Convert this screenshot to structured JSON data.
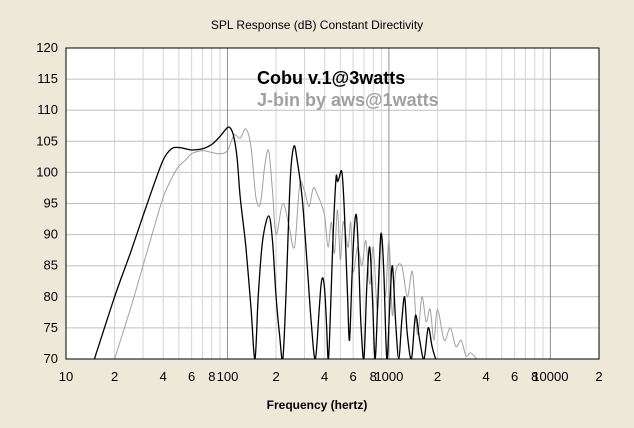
{
  "chart_data": {
    "type": "line",
    "title": "SPL Response (dB)   Constant Directivity",
    "xlabel": "Frequency (hertz)",
    "ylabel": "",
    "x_scale": "log",
    "xlim": [
      10,
      20000
    ],
    "ylim": [
      70,
      120
    ],
    "y_ticks": [
      70,
      75,
      80,
      85,
      90,
      95,
      100,
      105,
      110,
      115,
      120
    ],
    "x_ticks": [
      {
        "value": 10,
        "label": "10"
      },
      {
        "value": 20,
        "label": "2"
      },
      {
        "value": 40,
        "label": "4"
      },
      {
        "value": 60,
        "label": "6"
      },
      {
        "value": 80,
        "label": "8"
      },
      {
        "value": 100,
        "label": "100"
      },
      {
        "value": 200,
        "label": "2"
      },
      {
        "value": 400,
        "label": "4"
      },
      {
        "value": 600,
        "label": "6"
      },
      {
        "value": 800,
        "label": "8"
      },
      {
        "value": 1000,
        "label": "1000"
      },
      {
        "value": 2000,
        "label": "2"
      },
      {
        "value": 4000,
        "label": "4"
      },
      {
        "value": 6000,
        "label": "6"
      },
      {
        "value": 8000,
        "label": "8"
      },
      {
        "value": 10000,
        "label": "10000"
      },
      {
        "value": 20000,
        "label": "2"
      }
    ],
    "grid": true,
    "legend_position": "top-center",
    "colors": {
      "plot_bg": "#ffffff",
      "grid": "#c0c0c0",
      "series1": "#000000",
      "series2": "#a0a0a0"
    },
    "series": [
      {
        "name": "Cobu v.1@3watts",
        "color": "#000000",
        "x": [
          15,
          20,
          25,
          30,
          35,
          40,
          45,
          50,
          55,
          60,
          70,
          80,
          90,
          100,
          105,
          110,
          115,
          120,
          130,
          140,
          148,
          155,
          165,
          180,
          190,
          200,
          210,
          220,
          230,
          245,
          258,
          270,
          290,
          310,
          330,
          350,
          370,
          380,
          390,
          400,
          410,
          420,
          430,
          450,
          470,
          480,
          490,
          510,
          525,
          540,
          555,
          570,
          590,
          610,
          630,
          650,
          670,
          700,
          730,
          760,
          790,
          820,
          850,
          880,
          900,
          930,
          970,
          1010,
          1050,
          1100,
          1150,
          1200,
          1250,
          1300,
          1380,
          1460,
          1550,
          1650,
          1750,
          1850,
          1950,
          2000
        ],
        "y": [
          70,
          80,
          87,
          93,
          98,
          102,
          103.8,
          104,
          103.8,
          103.6,
          103.8,
          104.5,
          105.8,
          107.2,
          107,
          105.5,
          102,
          96,
          88,
          78,
          70,
          80,
          89,
          93,
          89,
          80,
          74,
          70,
          80,
          99,
          104.2,
          102,
          96,
          86,
          76,
          70,
          78,
          82,
          83,
          81,
          76,
          70,
          74,
          89,
          99,
          98.5,
          99,
          100.2,
          96,
          88,
          80,
          73,
          83,
          91,
          93,
          86,
          76,
          70,
          82,
          88,
          80,
          70,
          78,
          88,
          90,
          84,
          70,
          78,
          85,
          76,
          70,
          76,
          80,
          74,
          70,
          77,
          73,
          70,
          75,
          72,
          70,
          70
        ]
      },
      {
        "name": "J-bin by aws@1watts",
        "color": "#a0a0a0",
        "x": [
          20,
          25,
          30,
          35,
          40,
          45,
          50,
          55,
          60,
          70,
          80,
          90,
          100,
          110,
          120,
          130,
          140,
          150,
          160,
          170,
          180,
          190,
          200,
          220,
          240,
          260,
          280,
          300,
          320,
          340,
          360,
          380,
          400,
          420,
          440,
          460,
          480,
          500,
          520,
          540,
          560,
          580,
          600,
          640,
          680,
          720,
          760,
          800,
          850,
          900,
          950,
          1000,
          1050,
          1100,
          1200,
          1300,
          1400,
          1500,
          1600,
          1700,
          1800,
          1900,
          2000,
          2200,
          2400,
          2600,
          2800,
          3000,
          3200,
          3500
        ],
        "y": [
          70,
          78,
          85,
          91,
          96,
          99,
          101,
          102,
          103,
          103.5,
          103.2,
          103,
          103.5,
          106,
          105.5,
          107,
          104,
          96,
          95,
          101,
          103.5,
          97,
          90,
          95,
          91.5,
          88,
          98,
          97,
          94.5,
          97.5,
          96.5,
          95,
          93,
          88,
          92,
          87,
          94,
          86,
          92,
          90,
          88,
          92,
          84,
          88,
          85,
          89,
          82,
          88,
          78,
          90,
          80,
          89,
          77,
          84,
          85,
          80,
          84,
          74,
          80,
          76,
          78,
          73,
          78,
          73,
          75,
          72,
          73,
          70.5,
          71,
          70
        ]
      }
    ]
  }
}
